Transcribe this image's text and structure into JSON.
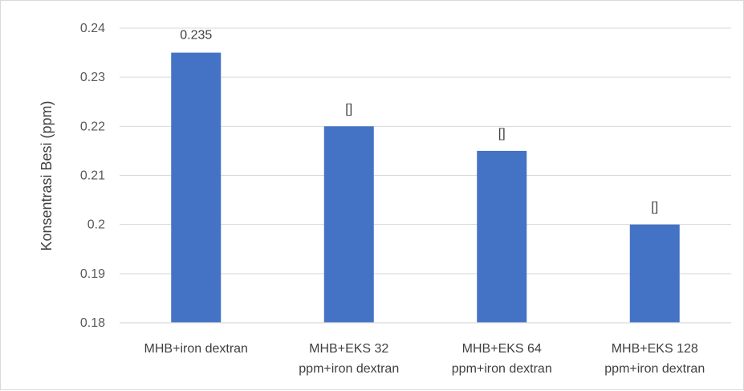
{
  "chart_data": {
    "type": "bar",
    "categories": [
      [
        "MHB+iron dextran"
      ],
      [
        "MHB+EKS 32",
        "ppm+iron dextran"
      ],
      [
        "MHB+EKS 64",
        "ppm+iron dextran"
      ],
      [
        "MHB+EKS 128",
        "ppm+iron dextran"
      ]
    ],
    "values": [
      0.235,
      0.22,
      0.215,
      0.2
    ],
    "data_labels": [
      "0.235",
      "[]",
      "[]",
      "[]"
    ],
    "yticks": [
      "0.18",
      "0.19",
      "0.2",
      "0.21",
      "0.22",
      "0.23",
      "0.24"
    ],
    "ylabel": "Konsentrasi Besi (ppm)",
    "ylim": [
      0.18,
      0.24
    ],
    "grid": true,
    "bar_color": "#4472c4",
    "grid_color": "#d9d9d9"
  }
}
